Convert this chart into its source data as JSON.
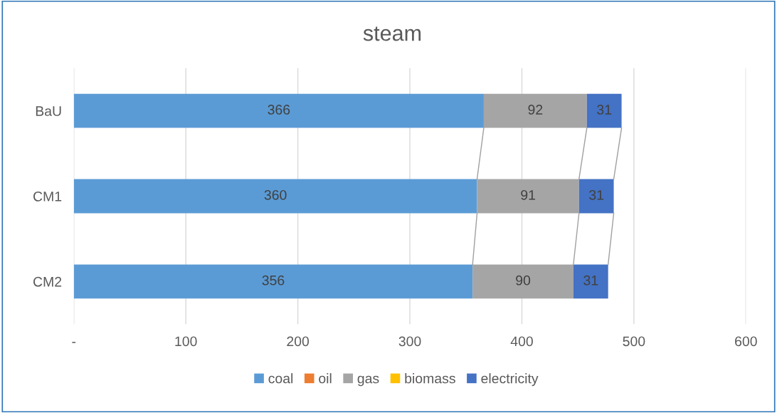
{
  "chart_data": {
    "type": "bar",
    "orientation": "horizontal",
    "stacked": true,
    "title": "steam",
    "categories": [
      "BaU",
      "CM1",
      "CM2"
    ],
    "series": [
      {
        "name": "coal",
        "color": "#5b9bd5",
        "values": [
          366,
          360,
          356
        ],
        "value_labels": [
          "366",
          "360",
          "356"
        ]
      },
      {
        "name": "oil",
        "color": "#ed7d31",
        "values": [
          0,
          0,
          0
        ],
        "value_labels": [
          null,
          null,
          null
        ]
      },
      {
        "name": "gas",
        "color": "#a5a5a5",
        "values": [
          92,
          91,
          90
        ],
        "value_labels": [
          "92",
          "91",
          "90"
        ]
      },
      {
        "name": "biomass",
        "color": "#ffc000",
        "values": [
          0,
          0,
          0
        ],
        "value_labels": [
          null,
          null,
          null
        ]
      },
      {
        "name": "electricity",
        "color": "#4472c4",
        "values": [
          31,
          31,
          31
        ],
        "value_labels": [
          "31",
          "31",
          "31"
        ]
      }
    ],
    "xlim": [
      0,
      600
    ],
    "xticks": [
      {
        "value": 0,
        "label": "-"
      },
      100,
      200,
      300,
      400,
      500,
      600
    ],
    "grid": "x",
    "legend": "bottom"
  }
}
